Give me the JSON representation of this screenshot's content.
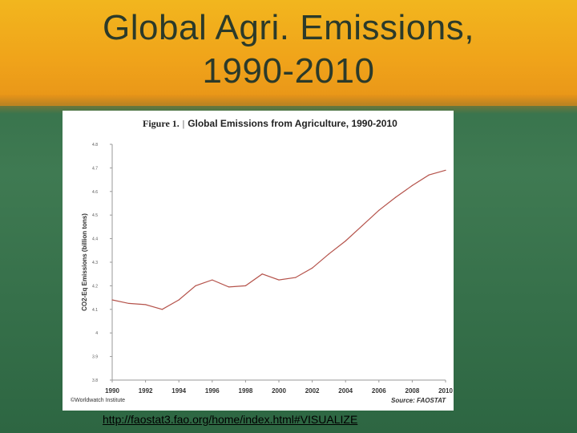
{
  "slide": {
    "title_line1": "Global Agri. Emissions,",
    "title_line2": "1990-2010",
    "link": "http://faostat3.fao.org/home/index.html#VISUALIZE"
  },
  "figure": {
    "label": "Figure 1.",
    "separator": "|",
    "title": "Global Emissions from Agriculture, 1990-2010",
    "credit": "©Worldwatch Institute",
    "source": "Source: FAOSTAT"
  },
  "chart_data": {
    "type": "line",
    "title": "Global Emissions from Agriculture, 1990-2010",
    "xlabel": "",
    "ylabel": "CO2-Eq Emissions (billion tons)",
    "xlim": [
      1990,
      2010
    ],
    "ylim": [
      3.8,
      4.8
    ],
    "x_tick_labels": [
      "1990",
      "1992",
      "1994",
      "1996",
      "1998",
      "2000",
      "2002",
      "2004",
      "2006",
      "2008",
      "2010"
    ],
    "y_tick_labels": [
      "4.8",
      "4.7",
      "4.6",
      "4.5",
      "4.4",
      "4.3",
      "4.2",
      "4.1",
      "4",
      "3.9",
      "3.8"
    ],
    "grid": false,
    "color": "#b5534b",
    "series": [
      {
        "x": [
          1990,
          1991,
          1992,
          1993,
          1994,
          1995,
          1996,
          1997,
          1998,
          1999,
          2000,
          2001,
          2002,
          2003,
          2004,
          2005,
          2006,
          2007,
          2008,
          2009,
          2010
        ],
        "values": [
          4.14,
          4.125,
          4.12,
          4.1,
          4.14,
          4.2,
          4.225,
          4.195,
          4.2,
          4.25,
          4.225,
          4.235,
          4.275,
          4.335,
          4.39,
          4.455,
          4.52,
          4.575,
          4.625,
          4.67,
          4.69
        ]
      }
    ]
  }
}
